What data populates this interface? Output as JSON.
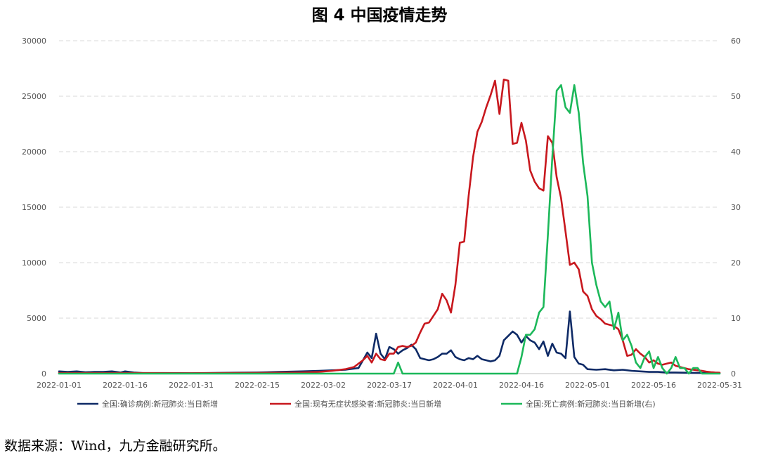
{
  "chart_data": {
    "type": "line",
    "title": "图 4  中国疫情走势",
    "xlabel": "",
    "ylabel": "",
    "x_ticks": [
      "2022-01-01",
      "2022-01-16",
      "2022-01-31",
      "2022-02-15",
      "2022-03-02",
      "2022-03-17",
      "2022-04-01",
      "2022-04-16",
      "2022-05-01",
      "2022-05-16",
      "2022-05-31"
    ],
    "xlim": [
      "2022-01-01",
      "2022-05-31"
    ],
    "ylim_left": [
      0,
      30000
    ],
    "ylim_right": [
      0,
      60
    ],
    "y_ticks_left": [
      "0",
      "5000",
      "10000",
      "15000",
      "20000",
      "25000",
      "30000"
    ],
    "y_ticks_right": [
      "0",
      "10",
      "20",
      "30",
      "40",
      "50",
      "60"
    ],
    "grid": "horizontal dashed",
    "legend_position": "bottom",
    "series": [
      {
        "name": "全国:确诊病例:新冠肺炎:当日新增",
        "color": "#0e2a66",
        "axis": "left",
        "points": [
          [
            "2022-01-01",
            200
          ],
          [
            "2022-01-03",
            150
          ],
          [
            "2022-01-05",
            200
          ],
          [
            "2022-01-07",
            120
          ],
          [
            "2022-01-09",
            150
          ],
          [
            "2022-01-11",
            150
          ],
          [
            "2022-01-13",
            200
          ],
          [
            "2022-01-15",
            100
          ],
          [
            "2022-01-16",
            200
          ],
          [
            "2022-01-18",
            100
          ],
          [
            "2022-01-20",
            50
          ],
          [
            "2022-01-25",
            50
          ],
          [
            "2022-01-31",
            40
          ],
          [
            "2022-02-05",
            60
          ],
          [
            "2022-02-10",
            80
          ],
          [
            "2022-02-15",
            100
          ],
          [
            "2022-02-20",
            150
          ],
          [
            "2022-02-25",
            200
          ],
          [
            "2022-03-01",
            250
          ],
          [
            "2022-03-04",
            300
          ],
          [
            "2022-03-07",
            350
          ],
          [
            "2022-03-10",
            500
          ],
          [
            "2022-03-12",
            1900
          ],
          [
            "2022-03-13",
            1400
          ],
          [
            "2022-03-14",
            3600
          ],
          [
            "2022-03-15",
            1800
          ],
          [
            "2022-03-16",
            1300
          ],
          [
            "2022-03-17",
            2400
          ],
          [
            "2022-03-18",
            2200
          ],
          [
            "2022-03-19",
            1800
          ],
          [
            "2022-03-20",
            2100
          ],
          [
            "2022-03-21",
            2300
          ],
          [
            "2022-03-22",
            2600
          ],
          [
            "2022-03-23",
            2200
          ],
          [
            "2022-03-24",
            1400
          ],
          [
            "2022-03-25",
            1300
          ],
          [
            "2022-03-26",
            1200
          ],
          [
            "2022-03-27",
            1300
          ],
          [
            "2022-03-28",
            1500
          ],
          [
            "2022-03-29",
            1800
          ],
          [
            "2022-03-30",
            1800
          ],
          [
            "2022-03-31",
            2100
          ],
          [
            "2022-04-01",
            1500
          ],
          [
            "2022-04-02",
            1300
          ],
          [
            "2022-04-03",
            1200
          ],
          [
            "2022-04-04",
            1400
          ],
          [
            "2022-04-05",
            1300
          ],
          [
            "2022-04-06",
            1600
          ],
          [
            "2022-04-07",
            1300
          ],
          [
            "2022-04-08",
            1200
          ],
          [
            "2022-04-09",
            1100
          ],
          [
            "2022-04-10",
            1200
          ],
          [
            "2022-04-11",
            1600
          ],
          [
            "2022-04-12",
            3000
          ],
          [
            "2022-04-13",
            3400
          ],
          [
            "2022-04-14",
            3800
          ],
          [
            "2022-04-15",
            3500
          ],
          [
            "2022-04-16",
            2800
          ],
          [
            "2022-04-17",
            3400
          ],
          [
            "2022-04-18",
            3000
          ],
          [
            "2022-04-19",
            2800
          ],
          [
            "2022-04-20",
            2200
          ],
          [
            "2022-04-21",
            2900
          ],
          [
            "2022-04-22",
            1600
          ],
          [
            "2022-04-23",
            2700
          ],
          [
            "2022-04-24",
            1900
          ],
          [
            "2022-04-25",
            1800
          ],
          [
            "2022-04-26",
            1400
          ],
          [
            "2022-04-27",
            5600
          ],
          [
            "2022-04-28",
            1500
          ],
          [
            "2022-04-29",
            900
          ],
          [
            "2022-04-30",
            800
          ],
          [
            "2022-05-01",
            400
          ],
          [
            "2022-05-03",
            350
          ],
          [
            "2022-05-05",
            400
          ],
          [
            "2022-05-07",
            300
          ],
          [
            "2022-05-09",
            350
          ],
          [
            "2022-05-11",
            250
          ],
          [
            "2022-05-13",
            200
          ],
          [
            "2022-05-15",
            150
          ],
          [
            "2022-05-17",
            150
          ],
          [
            "2022-05-19",
            100
          ],
          [
            "2022-05-21",
            100
          ],
          [
            "2022-05-23",
            80
          ],
          [
            "2022-05-25",
            70
          ],
          [
            "2022-05-27",
            60
          ],
          [
            "2022-05-29",
            50
          ],
          [
            "2022-05-31",
            40
          ]
        ]
      },
      {
        "name": "全国:现有无症状感染者:新冠肺炎:当日新增",
        "color": "#c8181e",
        "axis": "left",
        "points": [
          [
            "2022-01-01",
            50
          ],
          [
            "2022-01-15",
            50
          ],
          [
            "2022-01-31",
            40
          ],
          [
            "2022-02-15",
            60
          ],
          [
            "2022-02-25",
            100
          ],
          [
            "2022-03-01",
            150
          ],
          [
            "2022-03-04",
            250
          ],
          [
            "2022-03-07",
            400
          ],
          [
            "2022-03-09",
            600
          ],
          [
            "2022-03-11",
            1200
          ],
          [
            "2022-03-12",
            1600
          ],
          [
            "2022-03-13",
            1000
          ],
          [
            "2022-03-14",
            1800
          ],
          [
            "2022-03-15",
            1300
          ],
          [
            "2022-03-16",
            1200
          ],
          [
            "2022-03-17",
            1800
          ],
          [
            "2022-03-18",
            1800
          ],
          [
            "2022-03-19",
            2400
          ],
          [
            "2022-03-20",
            2500
          ],
          [
            "2022-03-21",
            2400
          ],
          [
            "2022-03-22",
            2500
          ],
          [
            "2022-03-23",
            2800
          ],
          [
            "2022-03-24",
            3700
          ],
          [
            "2022-03-25",
            4500
          ],
          [
            "2022-03-26",
            4600
          ],
          [
            "2022-03-27",
            5200
          ],
          [
            "2022-03-28",
            5800
          ],
          [
            "2022-03-29",
            7200
          ],
          [
            "2022-03-30",
            6600
          ],
          [
            "2022-03-31",
            5500
          ],
          [
            "2022-04-01",
            8000
          ],
          [
            "2022-04-02",
            11800
          ],
          [
            "2022-04-03",
            11900
          ],
          [
            "2022-04-04",
            16000
          ],
          [
            "2022-04-05",
            19500
          ],
          [
            "2022-04-06",
            21800
          ],
          [
            "2022-04-07",
            22700
          ],
          [
            "2022-04-08",
            24000
          ],
          [
            "2022-04-09",
            25100
          ],
          [
            "2022-04-10",
            26400
          ],
          [
            "2022-04-11",
            23400
          ],
          [
            "2022-04-12",
            26500
          ],
          [
            "2022-04-13",
            26400
          ],
          [
            "2022-04-14",
            20700
          ],
          [
            "2022-04-15",
            20800
          ],
          [
            "2022-04-16",
            22600
          ],
          [
            "2022-04-17",
            21000
          ],
          [
            "2022-04-18",
            18300
          ],
          [
            "2022-04-19",
            17300
          ],
          [
            "2022-04-20",
            16700
          ],
          [
            "2022-04-21",
            16500
          ],
          [
            "2022-04-22",
            21400
          ],
          [
            "2022-04-23",
            20800
          ],
          [
            "2022-04-24",
            17700
          ],
          [
            "2022-04-25",
            15800
          ],
          [
            "2022-04-26",
            12800
          ],
          [
            "2022-04-27",
            9800
          ],
          [
            "2022-04-28",
            10000
          ],
          [
            "2022-04-29",
            9400
          ],
          [
            "2022-04-30",
            7400
          ],
          [
            "2022-05-01",
            7000
          ],
          [
            "2022-05-02",
            5800
          ],
          [
            "2022-05-03",
            5200
          ],
          [
            "2022-05-04",
            4900
          ],
          [
            "2022-05-05",
            4500
          ],
          [
            "2022-05-06",
            4400
          ],
          [
            "2022-05-07",
            4300
          ],
          [
            "2022-05-08",
            4000
          ],
          [
            "2022-05-09",
            3000
          ],
          [
            "2022-05-10",
            1600
          ],
          [
            "2022-05-11",
            1700
          ],
          [
            "2022-05-12",
            2200
          ],
          [
            "2022-05-13",
            1800
          ],
          [
            "2022-05-14",
            1500
          ],
          [
            "2022-05-15",
            1000
          ],
          [
            "2022-05-16",
            1200
          ],
          [
            "2022-05-17",
            900
          ],
          [
            "2022-05-18",
            800
          ],
          [
            "2022-05-19",
            900
          ],
          [
            "2022-05-20",
            1000
          ],
          [
            "2022-05-21",
            700
          ],
          [
            "2022-05-22",
            600
          ],
          [
            "2022-05-23",
            500
          ],
          [
            "2022-05-24",
            400
          ],
          [
            "2022-05-25",
            350
          ],
          [
            "2022-05-26",
            300
          ],
          [
            "2022-05-27",
            250
          ],
          [
            "2022-05-28",
            180
          ],
          [
            "2022-05-29",
            130
          ],
          [
            "2022-05-30",
            100
          ],
          [
            "2022-05-31",
            80
          ]
        ]
      },
      {
        "name": "全国:死亡病例:新冠肺炎:当日新增(右)",
        "color": "#1cb85a",
        "axis": "right",
        "points": [
          [
            "2022-01-01",
            0
          ],
          [
            "2022-03-18",
            0
          ],
          [
            "2022-03-19",
            2
          ],
          [
            "2022-03-20",
            0
          ],
          [
            "2022-04-15",
            0
          ],
          [
            "2022-04-16",
            3
          ],
          [
            "2022-04-17",
            7
          ],
          [
            "2022-04-18",
            7
          ],
          [
            "2022-04-19",
            8
          ],
          [
            "2022-04-20",
            11
          ],
          [
            "2022-04-21",
            12
          ],
          [
            "2022-04-22",
            25
          ],
          [
            "2022-04-23",
            39
          ],
          [
            "2022-04-24",
            51
          ],
          [
            "2022-04-25",
            52
          ],
          [
            "2022-04-26",
            48
          ],
          [
            "2022-04-27",
            47
          ],
          [
            "2022-04-28",
            52
          ],
          [
            "2022-04-29",
            47
          ],
          [
            "2022-04-30",
            38
          ],
          [
            "2022-05-01",
            32
          ],
          [
            "2022-05-02",
            20
          ],
          [
            "2022-05-03",
            16
          ],
          [
            "2022-05-04",
            13
          ],
          [
            "2022-05-05",
            12
          ],
          [
            "2022-05-06",
            13
          ],
          [
            "2022-05-07",
            8
          ],
          [
            "2022-05-08",
            11
          ],
          [
            "2022-05-09",
            6
          ],
          [
            "2022-05-10",
            7
          ],
          [
            "2022-05-11",
            5
          ],
          [
            "2022-05-12",
            2
          ],
          [
            "2022-05-13",
            1
          ],
          [
            "2022-05-14",
            3
          ],
          [
            "2022-05-15",
            4
          ],
          [
            "2022-05-16",
            1
          ],
          [
            "2022-05-17",
            3
          ],
          [
            "2022-05-18",
            1
          ],
          [
            "2022-05-19",
            0
          ],
          [
            "2022-05-20",
            1
          ],
          [
            "2022-05-21",
            3
          ],
          [
            "2022-05-22",
            1
          ],
          [
            "2022-05-23",
            1
          ],
          [
            "2022-05-24",
            0
          ],
          [
            "2022-05-25",
            1
          ],
          [
            "2022-05-26",
            1
          ],
          [
            "2022-05-27",
            0
          ],
          [
            "2022-05-28",
            0
          ],
          [
            "2022-05-31",
            0
          ]
        ]
      }
    ]
  },
  "source_note": "数据来源：Wind，九方金融研究所。"
}
